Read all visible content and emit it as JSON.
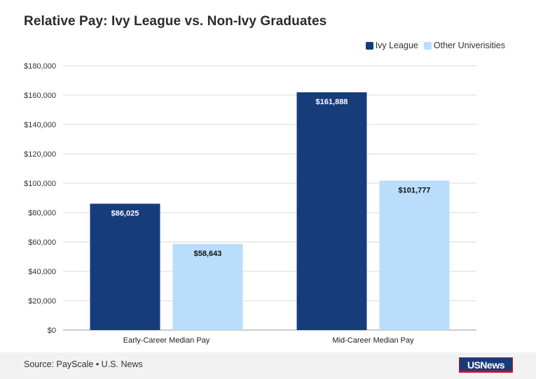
{
  "chart_data": {
    "type": "bar",
    "title": "Relative Pay: Ivy League vs. Non-Ivy Graduates",
    "categories": [
      "Early-Career Median Pay",
      "Mid-Career Median Pay"
    ],
    "series": [
      {
        "name": "Ivy League",
        "color": "#163c7a",
        "values": [
          86025,
          161888
        ],
        "labels": [
          "$86,025",
          "$161,888"
        ],
        "label_color": "#ffffff"
      },
      {
        "name": "Other Univerisities",
        "color": "#b9ddfb",
        "values": [
          58643,
          101777
        ],
        "labels": [
          "$58,643",
          "$101,777"
        ],
        "label_color": "#111111"
      }
    ],
    "ylim": [
      0,
      180000
    ],
    "yticks": [
      0,
      20000,
      40000,
      60000,
      80000,
      100000,
      120000,
      140000,
      160000,
      180000
    ],
    "ytick_labels": [
      "$0",
      "$20,000",
      "$40,000",
      "$60,000",
      "$80,000",
      "$100,000",
      "$120,000",
      "$140,000",
      "$160,000",
      "$180,000"
    ],
    "grid": true,
    "legend_position": "top-right",
    "xlabel": "",
    "ylabel": ""
  },
  "footer": {
    "source": "Source: PayScale • U.S. News",
    "logo_text": "USNews"
  }
}
